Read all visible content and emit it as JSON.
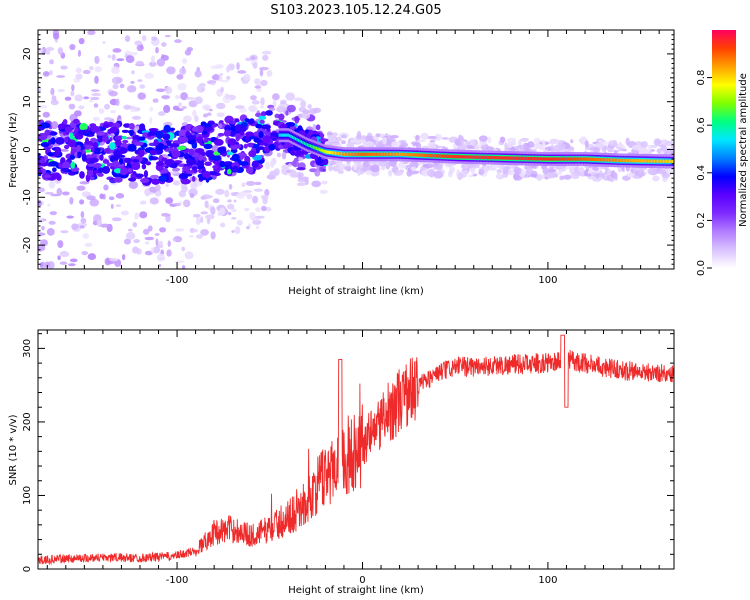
{
  "title": "S103.2023.105.12.24.G05",
  "colors": {
    "snr_line": "#ee2a2a",
    "background": "#ffffff",
    "axis": "#000000",
    "colormap": [
      "#ffffff",
      "#d9c2ff",
      "#b27cff",
      "#7d2bff",
      "#5a00ff",
      "#0000ff",
      "#0080ff",
      "#00e8ff",
      "#00ff80",
      "#80ff00",
      "#ffff00",
      "#ffa000",
      "#ff4000",
      "#ff0060"
    ]
  },
  "chart_data": [
    {
      "type": "heatmap",
      "xlabel": "Height of straight line (km)",
      "ylabel": "Frequency (Hz)",
      "xlim": [
        -175,
        168
      ],
      "ylim": [
        -25,
        25
      ],
      "x_ticks": [
        -100,
        0,
        100
      ],
      "x_tick_labels": [
        "-100",
        "",
        "100"
      ],
      "y_ticks": [
        -20,
        -10,
        0,
        10,
        20
      ],
      "y_tick_labels": [
        "-20",
        "-10",
        "0",
        "10",
        "20"
      ],
      "grid": false,
      "ridge": {
        "x": [
          -175,
          -150,
          -120,
          -100,
          -80,
          -60,
          -50,
          -40,
          -30,
          -20,
          -10,
          0,
          20,
          50,
          80,
          100,
          120,
          140,
          168
        ],
        "freq": [
          0,
          0,
          -1,
          -1,
          0,
          1,
          3,
          3,
          1,
          -0.5,
          -1,
          -1,
          -1,
          -1.5,
          -1.8,
          -2,
          -2,
          -2.3,
          -2.5
        ],
        "amplitude": [
          0.25,
          0.28,
          0.28,
          0.3,
          0.35,
          0.4,
          0.5,
          0.55,
          0.6,
          0.75,
          0.85,
          0.9,
          0.85,
          0.95,
          0.95,
          0.95,
          0.9,
          0.85,
          0.8
        ]
      },
      "colorbar": {
        "label": "Normalized spectral amplitude",
        "range": [
          0,
          1
        ],
        "ticks": [
          0.0,
          0.2,
          0.4,
          0.6,
          0.8
        ],
        "tick_labels": [
          "0.0",
          "0.2",
          "0.4",
          "0.6",
          "0.8"
        ],
        "placement": "right"
      }
    },
    {
      "type": "line",
      "xlabel": "Height of straight line (km)",
      "ylabel": "SNR (10 * v/v)",
      "xlim": [
        -175,
        168
      ],
      "ylim": [
        0,
        325
      ],
      "x_ticks": [
        -100,
        0,
        100
      ],
      "x_tick_labels": [
        "-100",
        "0",
        "100"
      ],
      "y_ticks": [
        0,
        100,
        200,
        300
      ],
      "y_tick_labels": [
        "0",
        "100",
        "200",
        "300"
      ],
      "grid": false,
      "series": [
        {
          "x": [
            -175,
            -160,
            -140,
            -120,
            -100,
            -90,
            -80,
            -70,
            -60,
            -50,
            -40,
            -30,
            -20,
            -10,
            0,
            10,
            20,
            30,
            40,
            50,
            60,
            80,
            100,
            110,
            120,
            140,
            168
          ],
          "values": [
            12,
            14,
            16,
            15,
            18,
            25,
            50,
            55,
            45,
            55,
            70,
            90,
            130,
            150,
            170,
            200,
            230,
            250,
            265,
            275,
            275,
            278,
            280,
            285,
            280,
            270,
            265
          ]
        }
      ]
    }
  ]
}
